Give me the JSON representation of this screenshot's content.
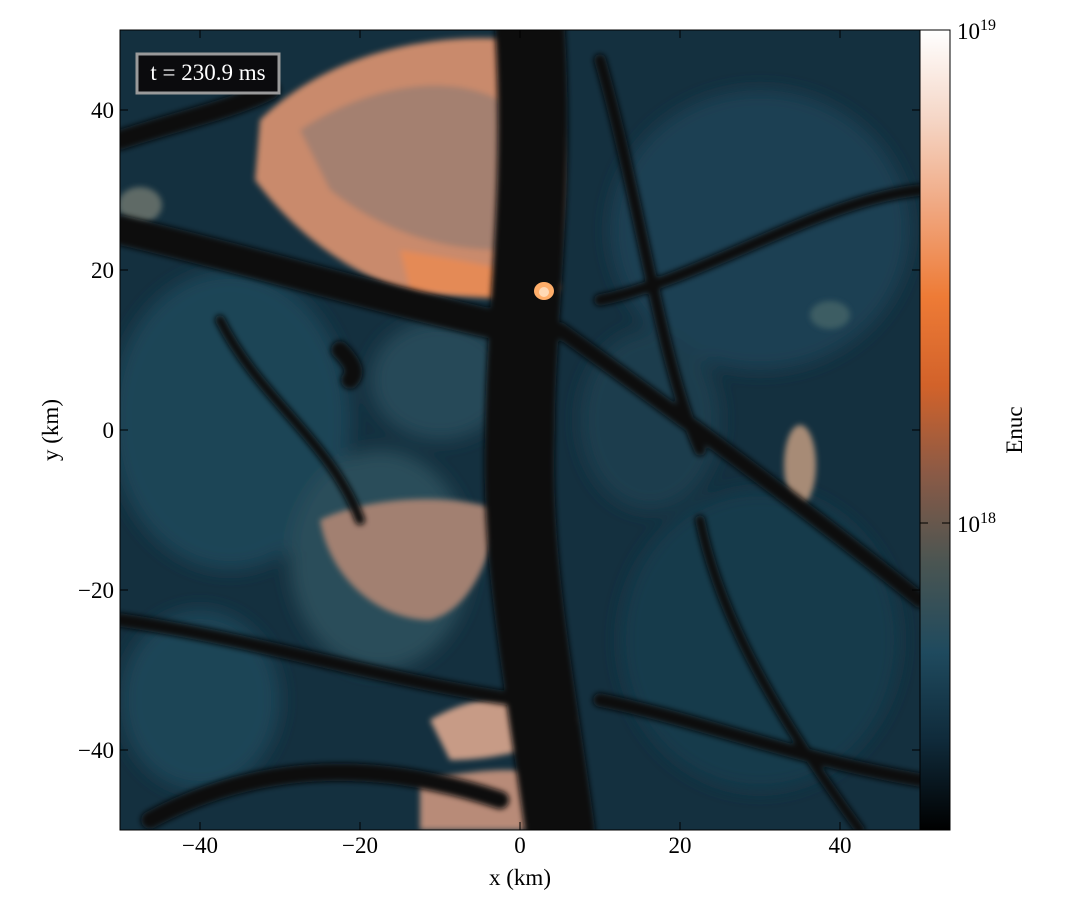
{
  "chart_data": {
    "type": "heatmap",
    "xlabel": "x  (km)",
    "ylabel": "y  (km)",
    "xlim": [
      -50,
      50
    ],
    "ylim": [
      -50,
      50
    ],
    "x_ticks": [
      -40,
      -20,
      0,
      20,
      40
    ],
    "y_ticks": [
      -40,
      -20,
      0,
      20,
      40
    ],
    "x_tick_labels": [
      "−40",
      "−20",
      "0",
      "20",
      "40"
    ],
    "y_tick_labels": [
      "−40",
      "−20",
      "0",
      "20",
      "40"
    ],
    "annotation": "t = 230.9 ms",
    "colorbar": {
      "label": "Enuc",
      "scale": "log",
      "tick_values": [
        1e+18,
        1e+19
      ],
      "tick_labels": [
        {
          "base": "10",
          "exp": "18"
        },
        {
          "base": "10",
          "exp": "19"
        }
      ],
      "colors": [
        "#000000",
        "#0f2a3a",
        "#1f4a5e",
        "#4a5552",
        "#8a5a46",
        "#d2622a",
        "#ee7b36",
        "#f0a780",
        "#f5d6c6",
        "#ffffff"
      ]
    },
    "field_summary": {
      "background_level": "dark blue-teal (~4e17 to 6e17)",
      "dark_filaments": "near zero along a central channel around x = 0 to 10 km",
      "hot_spot": {
        "x_km": 3,
        "y_km": 17,
        "level": "~4e18"
      },
      "bright_blob_top": {
        "x_range_km": [
          -30,
          5
        ],
        "y_range_km": [
          17,
          48
        ],
        "level": "~2e18 to 3.5e18"
      },
      "bright_blob_bottom": {
        "x_range_km": [
          -20,
          7
        ],
        "y_range_km": [
          -50,
          -35
        ],
        "level": "~1.5e18 to 2e18"
      }
    }
  }
}
